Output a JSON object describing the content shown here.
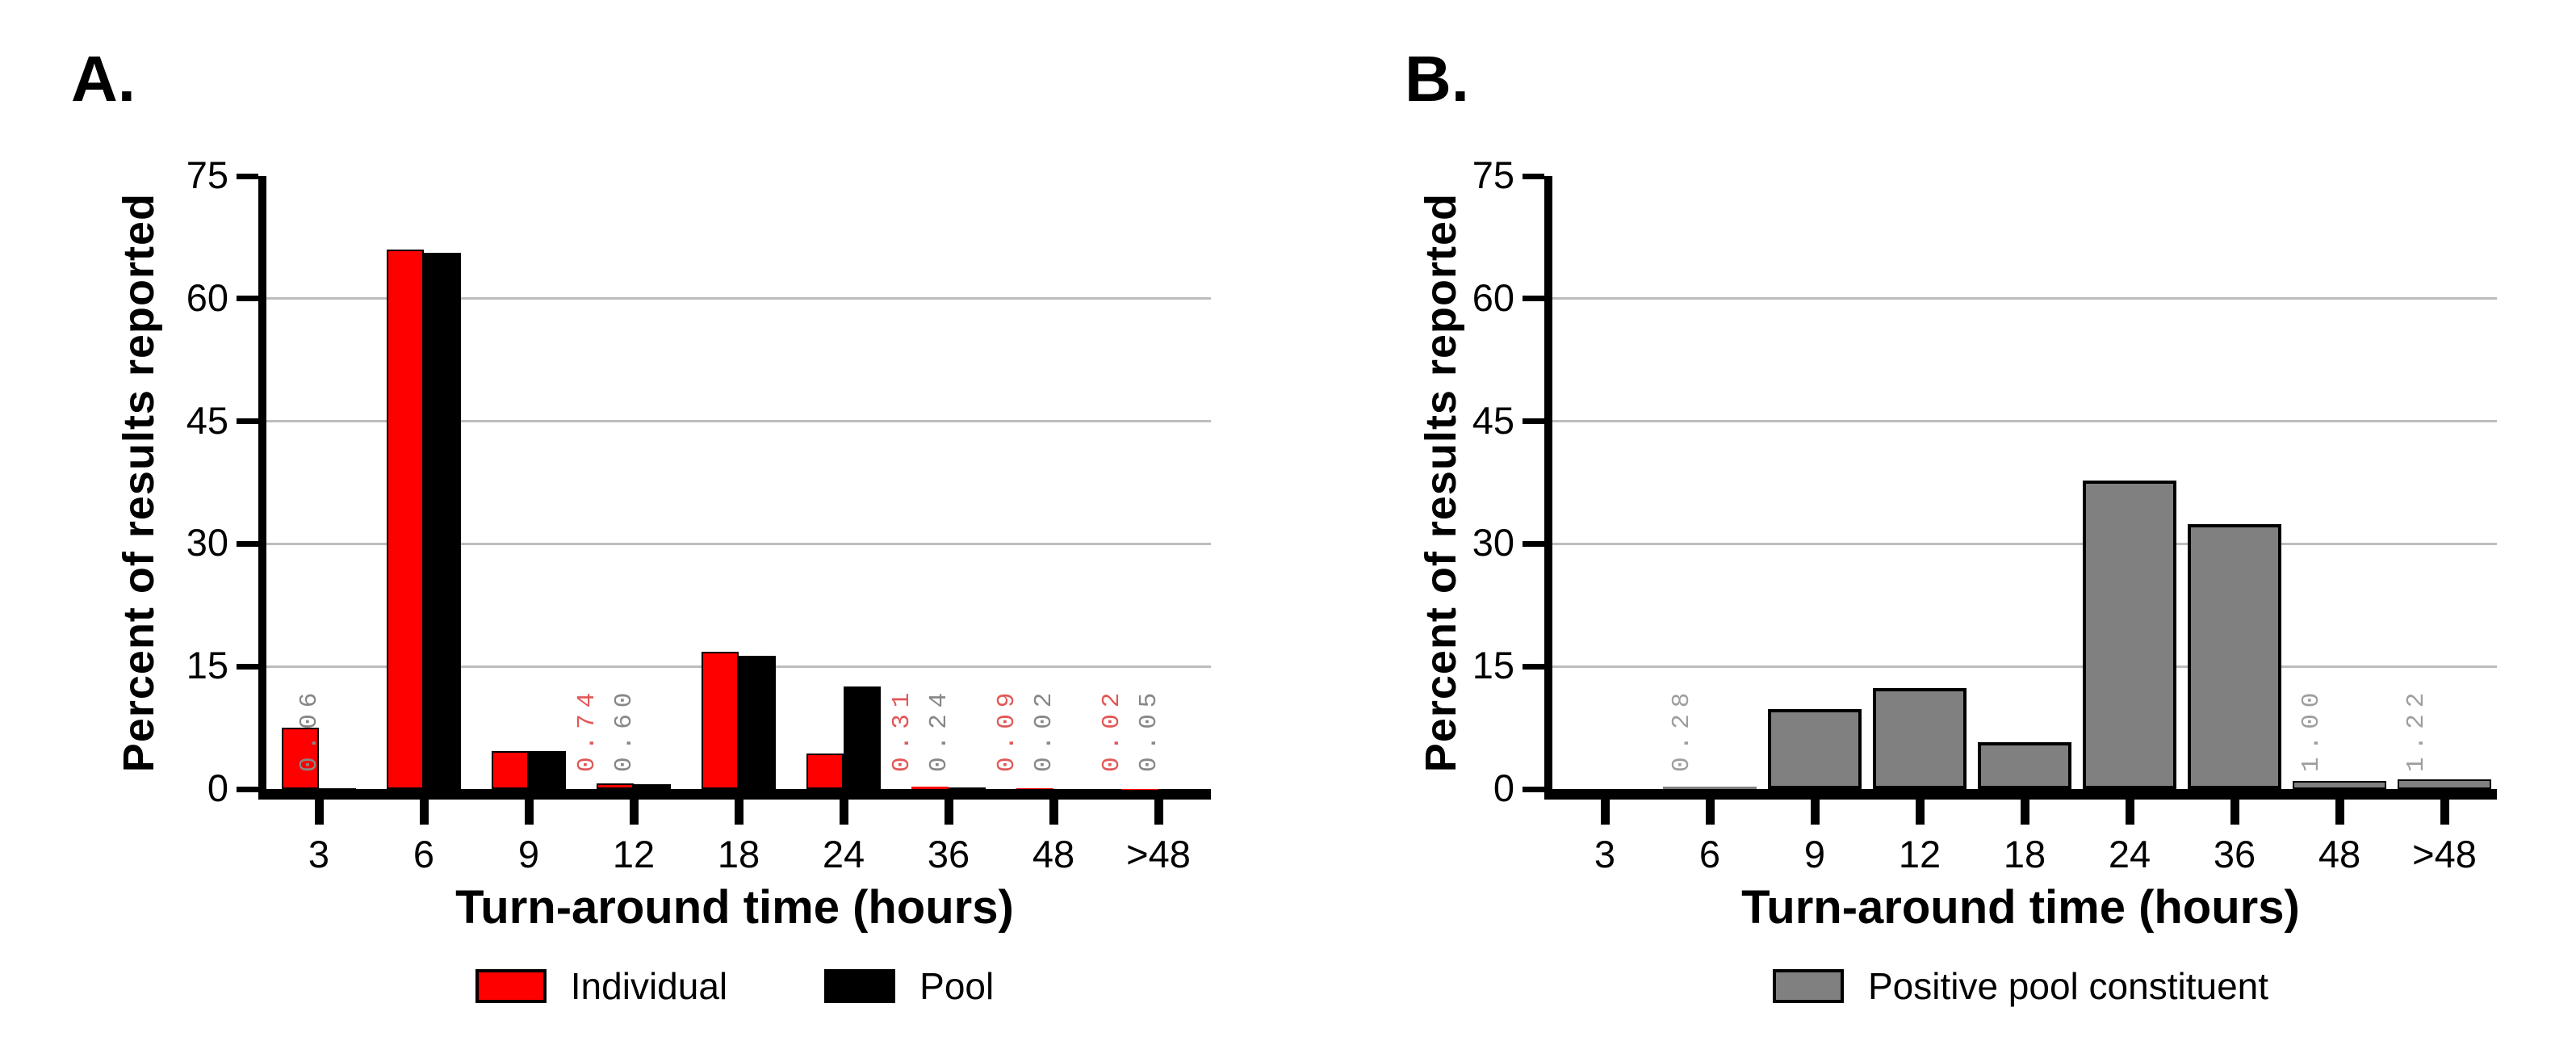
{
  "panel_labels": [
    "A.",
    "B."
  ],
  "colors": {
    "bar_red": "#fe0000",
    "bar_black": "#000000",
    "bar_gray": "#808080",
    "bar_border": "#000000",
    "annotation_red": "#e25757",
    "annotation_gray": "#878787",
    "annotation_gray_light": "#9e9e9e",
    "gridline": "#bdbdbd",
    "axis": "#000000"
  },
  "chart_data": [
    {
      "type": "bar",
      "panel_label": "A.",
      "title": "",
      "xlabel": "Turn-around time (hours)",
      "ylabel": "Percent of results reported",
      "categories": [
        "3",
        "6",
        "9",
        "12",
        "18",
        "24",
        "36",
        "48",
        ">48"
      ],
      "series": [
        {
          "name": "Individual",
          "color": "#fe0000",
          "values": [
            7.5,
            66,
            4.6,
            0.74,
            16.8,
            4.3,
            0.31,
            0.09,
            0.02
          ]
        },
        {
          "name": "Pool",
          "color": "#000000",
          "values": [
            0.06,
            65.6,
            4.6,
            0.6,
            16.3,
            12.6,
            0.24,
            0.02,
            0.05
          ]
        }
      ],
      "bar_labels": [
        {
          "category": "3",
          "slot": "right",
          "text": "0.06",
          "color": "#878787"
        },
        {
          "category": "12",
          "slot": "left",
          "text": "0.74",
          "color": "#e25757"
        },
        {
          "category": "12",
          "slot": "right",
          "text": "0.60",
          "color": "#878787"
        },
        {
          "category": "36",
          "slot": "left",
          "text": "0.31",
          "color": "#e25757"
        },
        {
          "category": "36",
          "slot": "right",
          "text": "0.24",
          "color": "#878787"
        },
        {
          "category": "48",
          "slot": "left",
          "text": "0.09",
          "color": "#e25757"
        },
        {
          "category": "48",
          "slot": "right",
          "text": "0.02",
          "color": "#878787"
        },
        {
          "category": ">48",
          "slot": "left",
          "text": "0.02",
          "color": "#e25757"
        },
        {
          "category": ">48",
          "slot": "right",
          "text": "0.05",
          "color": "#878787"
        }
      ],
      "ylim": [
        0,
        75
      ],
      "yticks": [
        0,
        15,
        30,
        45,
        60,
        75
      ],
      "grid": true,
      "legend_position": "bottom"
    },
    {
      "type": "bar",
      "panel_label": "B.",
      "title": "",
      "xlabel": "Turn-around time (hours)",
      "ylabel": "Percent of results reported",
      "categories": [
        "3",
        "6",
        "9",
        "12",
        "18",
        "24",
        "36",
        "48",
        ">48"
      ],
      "series": [
        {
          "name": "Positive pool constituent",
          "color": "#808080",
          "values": [
            0,
            0.28,
            9.8,
            12.4,
            5.7,
            37.7,
            32.4,
            1.0,
            1.22
          ]
        }
      ],
      "bar_labels": [
        {
          "category": "6",
          "slot": "center",
          "text": "0.28",
          "color": "#9e9e9e"
        },
        {
          "category": "48",
          "slot": "center",
          "text": "1.00",
          "color": "#9e9e9e"
        },
        {
          "category": ">48",
          "slot": "center",
          "text": "1.22",
          "color": "#9e9e9e"
        }
      ],
      "ylim": [
        0,
        75
      ],
      "yticks": [
        0,
        15,
        30,
        45,
        60,
        75
      ],
      "grid": true,
      "legend_position": "bottom"
    }
  ]
}
